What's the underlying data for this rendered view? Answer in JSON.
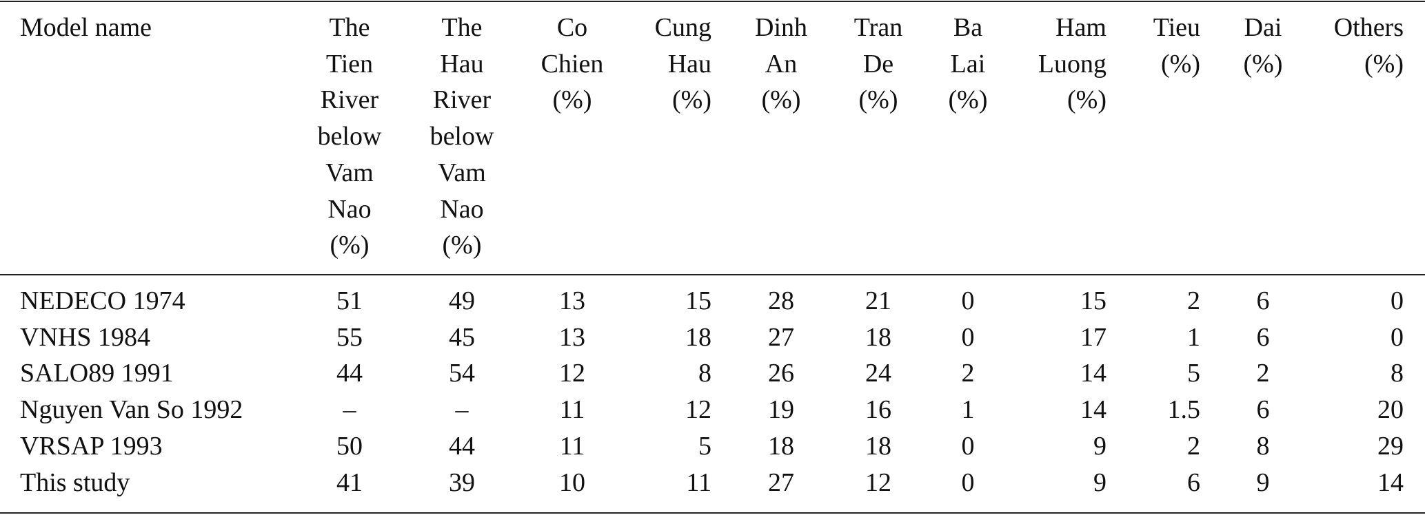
{
  "table": {
    "header": [
      [
        "Model name"
      ],
      [
        "The",
        "Tien",
        "River",
        "below",
        "Vam",
        "Nao",
        "(%)"
      ],
      [
        "The",
        "Hau",
        "River",
        "below",
        "Vam",
        "Nao",
        "(%)"
      ],
      [
        "Co",
        "Chien",
        "(%)"
      ],
      [
        "Cung",
        "Hau",
        "(%)"
      ],
      [
        "Dinh",
        "An",
        "(%)"
      ],
      [
        "Tran",
        "De",
        "(%)"
      ],
      [
        "Ba",
        "Lai",
        "(%)"
      ],
      [
        "Ham",
        "Luong",
        "(%)"
      ],
      [
        "Tieu",
        "(%)"
      ],
      [
        "Dai",
        "(%)"
      ],
      [
        "Others",
        "(%)"
      ]
    ],
    "rows": [
      [
        "NEDECO 1974",
        51,
        49,
        13,
        15,
        28,
        21,
        0,
        15,
        2,
        6,
        0
      ],
      [
        "VNHS 1984",
        55,
        45,
        13,
        18,
        27,
        18,
        0,
        17,
        1,
        6,
        0
      ],
      [
        "SALO89 1991",
        44,
        54,
        12,
        8,
        26,
        24,
        2,
        14,
        5,
        2,
        8
      ],
      [
        "Nguyen Van So 1992",
        "–",
        "–",
        11,
        12,
        19,
        16,
        1,
        14,
        1.5,
        6,
        20
      ],
      [
        "VRSAP 1993",
        50,
        44,
        11,
        5,
        18,
        18,
        0,
        9,
        2,
        8,
        29
      ],
      [
        "This study",
        41,
        39,
        10,
        11,
        27,
        12,
        0,
        9,
        6,
        9,
        14
      ]
    ]
  }
}
